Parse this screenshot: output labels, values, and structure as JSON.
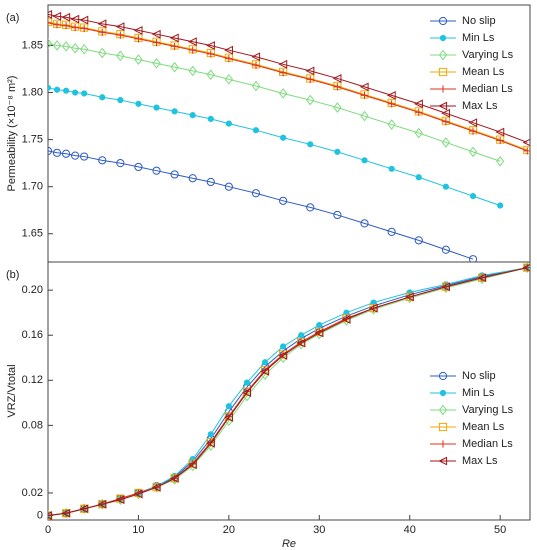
{
  "chart_data": [
    {
      "type": "line",
      "panel_label": "(a)",
      "y_label": "Permeability (×10⁻⁸ m²)",
      "x": [
        0,
        1,
        2,
        3,
        4,
        6,
        8,
        10,
        12,
        14,
        16,
        18,
        20,
        23,
        26,
        29,
        32,
        35,
        38,
        41,
        44,
        47,
        50,
        53
      ],
      "xlim": [
        0,
        53.3
      ],
      "ylim": [
        1.62,
        1.893
      ],
      "yticks": [
        1.65,
        {
          "value": 1.7,
          "label": "1.70"
        },
        1.75,
        {
          "value": 1.8,
          "label": "1.80"
        },
        1.85
      ],
      "legend": "upper right",
      "series": [
        {
          "name": "No slip",
          "color": "#2d5bc4",
          "marker": "circle",
          "values": [
            1.738,
            1.736,
            1.735,
            1.733,
            1.732,
            1.728,
            1.725,
            1.721,
            1.717,
            1.713,
            1.709,
            1.705,
            1.7,
            1.693,
            1.685,
            1.678,
            1.67,
            1.661,
            1.652,
            1.643,
            1.633,
            1.623,
            null,
            null
          ]
        },
        {
          "name": "Min Ls",
          "color": "#1fc3e0",
          "marker": "dot",
          "values": [
            1.805,
            1.803,
            1.802,
            1.8,
            1.799,
            1.795,
            1.792,
            1.788,
            1.784,
            1.78,
            1.776,
            1.772,
            1.767,
            1.76,
            1.752,
            1.745,
            1.737,
            1.728,
            1.719,
            1.71,
            1.7,
            1.69,
            1.68,
            null
          ]
        },
        {
          "name": "Varying Ls",
          "color": "#7ddc7d",
          "marker": "diamond",
          "values": [
            1.852,
            1.85,
            1.849,
            1.847,
            1.846,
            1.842,
            1.839,
            1.835,
            1.831,
            1.827,
            1.823,
            1.819,
            1.814,
            1.807,
            1.799,
            1.792,
            1.784,
            1.775,
            1.766,
            1.757,
            1.747,
            1.737,
            1.727,
            null
          ]
        },
        {
          "name": "Mean Ls",
          "color": "#f2a900",
          "marker": "square",
          "values": [
            1.875,
            1.873,
            1.872,
            1.87,
            1.869,
            1.865,
            1.862,
            1.858,
            1.854,
            1.85,
            1.846,
            1.842,
            1.837,
            1.83,
            1.822,
            1.815,
            1.807,
            1.798,
            1.789,
            1.78,
            1.77,
            1.76,
            1.75,
            1.739
          ]
        },
        {
          "name": "Median Ls",
          "color": "#e0301e",
          "marker": "plus",
          "values": [
            1.874,
            1.872,
            1.871,
            1.869,
            1.868,
            1.864,
            1.861,
            1.857,
            1.853,
            1.849,
            1.845,
            1.841,
            1.836,
            1.829,
            1.821,
            1.814,
            1.806,
            1.797,
            1.788,
            1.779,
            1.769,
            1.759,
            1.749,
            1.738
          ]
        },
        {
          "name": "Max Ls",
          "color": "#a3161a",
          "marker": "triangle",
          "values": [
            1.883,
            1.881,
            1.88,
            1.878,
            1.877,
            1.873,
            1.87,
            1.866,
            1.862,
            1.858,
            1.854,
            1.85,
            1.845,
            1.838,
            1.83,
            1.823,
            1.815,
            1.806,
            1.797,
            1.788,
            1.778,
            1.768,
            1.758,
            1.747
          ]
        }
      ]
    },
    {
      "type": "line",
      "panel_label": "(b)",
      "y_label": "VRZ/Vtotal",
      "x_label": "Re",
      "x": [
        0,
        2,
        4,
        6,
        8,
        10,
        12,
        14,
        16,
        18,
        20,
        22,
        24,
        26,
        28,
        30,
        33,
        36,
        40,
        44,
        48,
        53
      ],
      "xlim": [
        0,
        53.3
      ],
      "ylim": [
        -0.004,
        0.225
      ],
      "xticks": [
        0,
        10,
        20,
        30,
        40,
        50
      ],
      "yticks": [
        0,
        0.02,
        0.08,
        0.12,
        0.16,
        {
          "value": 0.2,
          "label": "0.20"
        }
      ],
      "legend": "lower right",
      "series": [
        {
          "name": "No slip",
          "color": "#2d5bc4",
          "marker": "circle",
          "values": [
            0,
            0.002,
            0.006,
            0.01,
            0.015,
            0.02,
            0.026,
            0.034,
            0.048,
            0.068,
            0.092,
            0.114,
            0.132,
            0.146,
            0.157,
            0.166,
            0.177,
            0.186,
            0.196,
            0.204,
            0.212,
            0.22
          ]
        },
        {
          "name": "Min Ls",
          "color": "#1fc3e0",
          "marker": "dot",
          "values": [
            0,
            0.002,
            0.006,
            0.01,
            0.015,
            0.02,
            0.026,
            0.035,
            0.05,
            0.072,
            0.097,
            0.118,
            0.136,
            0.15,
            0.16,
            0.169,
            0.18,
            0.189,
            0.198,
            0.205,
            0.213,
            0.22
          ]
        },
        {
          "name": "Varying Ls",
          "color": "#7ddc7d",
          "marker": "diamond",
          "values": [
            0,
            0.002,
            0.006,
            0.01,
            0.014,
            0.019,
            0.025,
            0.032,
            0.044,
            0.062,
            0.084,
            0.106,
            0.125,
            0.14,
            0.152,
            0.161,
            0.173,
            0.183,
            0.193,
            0.202,
            0.21,
            0.22
          ]
        },
        {
          "name": "Mean Ls",
          "color": "#f2a900",
          "marker": "square",
          "values": [
            0,
            0.002,
            0.006,
            0.01,
            0.015,
            0.02,
            0.025,
            0.033,
            0.046,
            0.065,
            0.088,
            0.11,
            0.129,
            0.143,
            0.154,
            0.163,
            0.175,
            0.184,
            0.194,
            0.203,
            0.211,
            0.22
          ]
        },
        {
          "name": "Median Ls",
          "color": "#e0301e",
          "marker": "plus",
          "values": [
            0,
            0.002,
            0.006,
            0.01,
            0.015,
            0.02,
            0.025,
            0.033,
            0.046,
            0.065,
            0.088,
            0.11,
            0.129,
            0.143,
            0.154,
            0.163,
            0.175,
            0.184,
            0.194,
            0.203,
            0.211,
            0.22
          ]
        },
        {
          "name": "Max Ls",
          "color": "#a3161a",
          "marker": "triangle",
          "values": [
            0,
            0.002,
            0.006,
            0.01,
            0.014,
            0.019,
            0.025,
            0.033,
            0.045,
            0.064,
            0.087,
            0.109,
            0.128,
            0.142,
            0.153,
            0.162,
            0.174,
            0.184,
            0.194,
            0.203,
            0.211,
            0.22
          ]
        }
      ]
    }
  ]
}
